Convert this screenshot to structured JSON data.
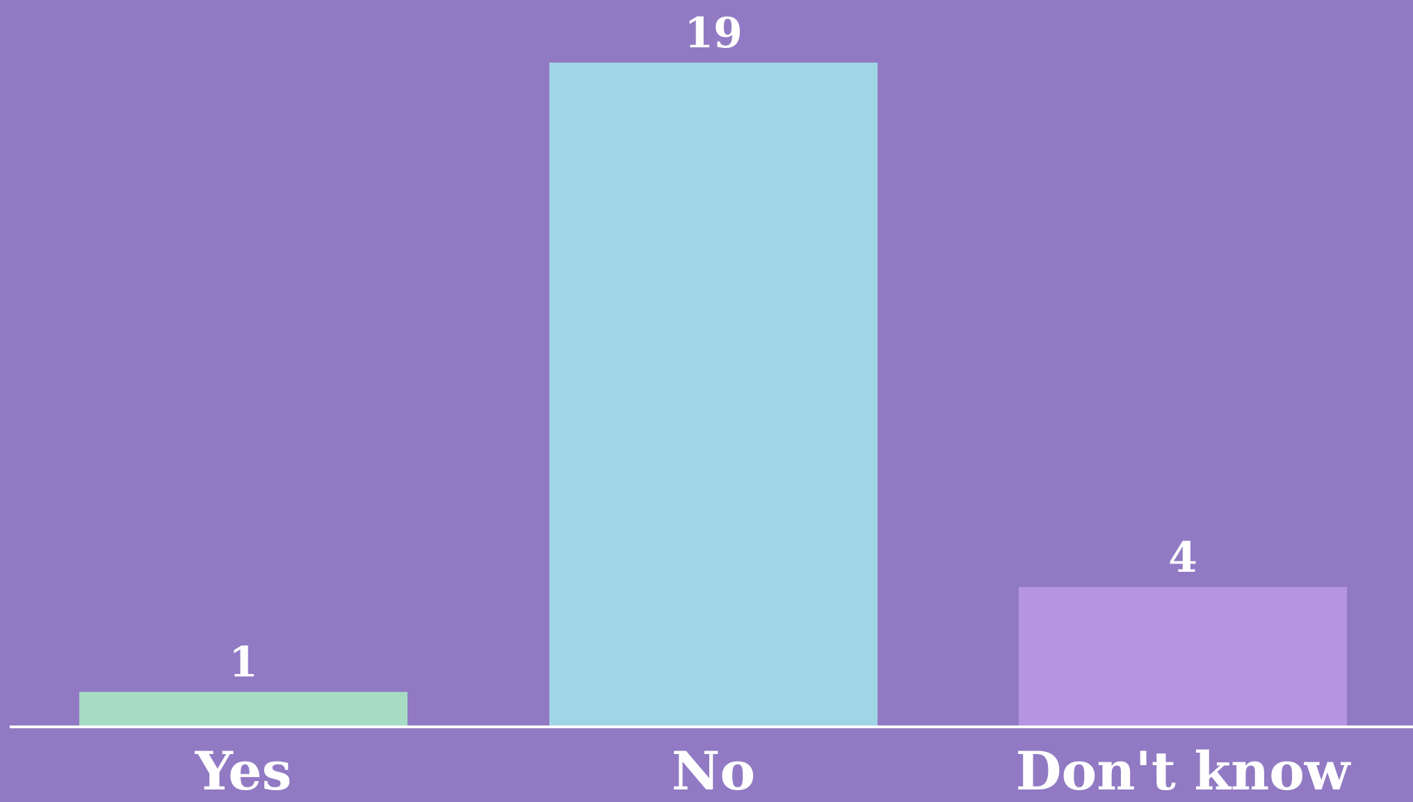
{
  "chart_data": {
    "type": "bar",
    "categories": [
      "Yes",
      "No",
      "Don't know"
    ],
    "values": [
      1,
      19,
      4
    ],
    "value_labels": [
      "1",
      "19",
      "4"
    ],
    "bar_colors": [
      "#a5dcc3",
      "#a0d5e5",
      "#b594e3"
    ],
    "ylim": [
      0,
      19
    ],
    "grid": false,
    "legend": "none"
  },
  "colors": {
    "background": "#917ac3",
    "text": "#ffffff",
    "axis": "#ffffff"
  }
}
